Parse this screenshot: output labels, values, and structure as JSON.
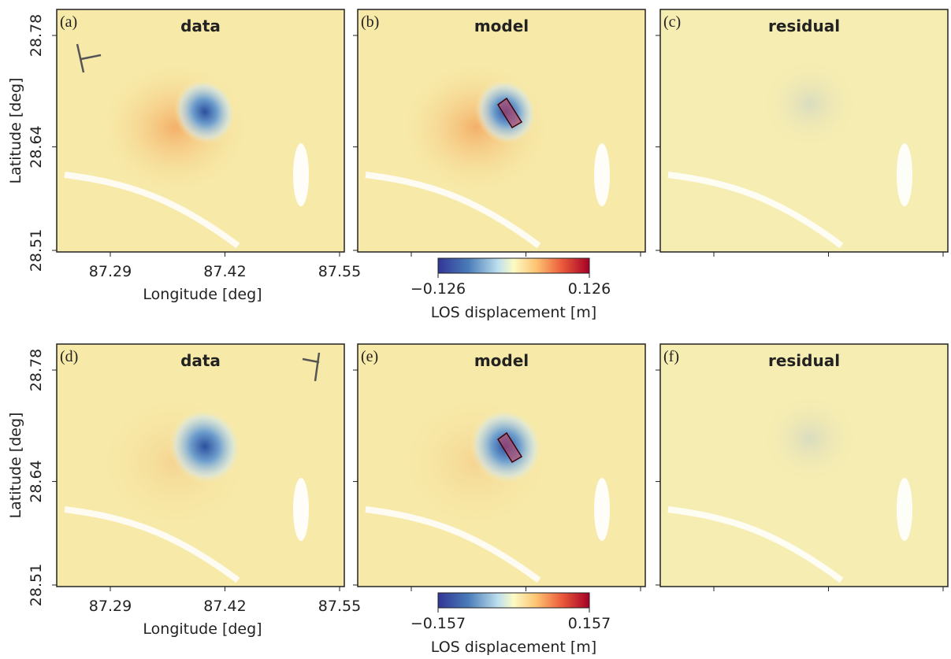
{
  "rows": [
    {
      "panels": [
        {
          "letter": "(a)",
          "title": "data"
        },
        {
          "letter": "(b)",
          "title": "model"
        },
        {
          "letter": "(c)",
          "title": "residual"
        }
      ],
      "xticks": [
        87.29,
        87.42,
        87.55
      ],
      "yticks": [
        28.78,
        28.64,
        28.51
      ],
      "xlabel": "Longitude [deg]",
      "ylabel": "Latitude [deg]",
      "colorbar": {
        "ticks": [
          {
            "value": -0.126,
            "label": "−0.126"
          },
          {
            "value": 0.126,
            "label": "0.126"
          }
        ],
        "label": "LOS displacement [m]"
      }
    },
    {
      "panels": [
        {
          "letter": "(d)",
          "title": "data"
        },
        {
          "letter": "(e)",
          "title": "model"
        },
        {
          "letter": "(f)",
          "title": "residual"
        }
      ],
      "xticks": [
        87.29,
        87.42,
        87.55
      ],
      "yticks": [
        28.78,
        28.64,
        28.51
      ],
      "xlabel": "Longitude [deg]",
      "ylabel": "Latitude [deg]",
      "colorbar": {
        "ticks": [
          {
            "value": -0.157,
            "label": "−0.157"
          },
          {
            "value": 0.157,
            "label": "0.157"
          }
        ],
        "label": "LOS displacement [m]"
      }
    }
  ]
}
